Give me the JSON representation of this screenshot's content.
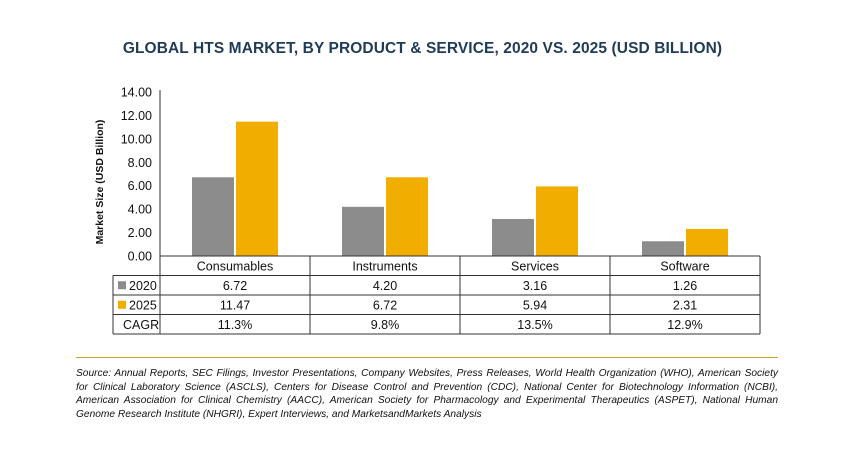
{
  "chart_data": {
    "type": "bar",
    "title": "GLOBAL HTS MARKET, BY PRODUCT & SERVICE, 2020 VS. 2025 (USD BILLION)",
    "ylabel": "Market Size (USD Billion)",
    "xlabel": "",
    "ylim": [
      0,
      14
    ],
    "yticks": [
      "14.00",
      "12.00",
      "10.00",
      "8.00",
      "6.00",
      "4.00",
      "2.00",
      "0.00"
    ],
    "categories": [
      "Consumables",
      "Instruments",
      "Services",
      "Software"
    ],
    "series": [
      {
        "name": "2020",
        "color": "#8c8c8c",
        "values": [
          6.72,
          4.2,
          3.16,
          1.26
        ],
        "labels": [
          "6.72",
          "4.20",
          "3.16",
          "1.26"
        ]
      },
      {
        "name": "2025",
        "color": "#f2ae00",
        "values": [
          11.47,
          6.72,
          5.94,
          2.31
        ],
        "labels": [
          "11.47",
          "6.72",
          "5.94",
          "2.31"
        ]
      }
    ],
    "table_rows": [
      {
        "label": "CAGR",
        "values": [
          "11.3%",
          "9.8%",
          "13.5%",
          "12.9%"
        ]
      }
    ],
    "grid": false,
    "legend": "table-left"
  },
  "source": "Source: Annual Reports, SEC Filings, Investor Presentations, Company Websites, Press Releases, World Health Organization (WHO), American Society for Clinical Laboratory Science (ASCLS), Centers for Disease Control and Prevention (CDC), National Center for Biotechnology Information (NCBI), American Association for Clinical Chemistry (AACC), American Society for Pharmacology and Experimental Therapeutics (ASPET), National Human Genome Research Institute (NHGRI), Expert Interviews, and MarketsandMarkets Analysis"
}
